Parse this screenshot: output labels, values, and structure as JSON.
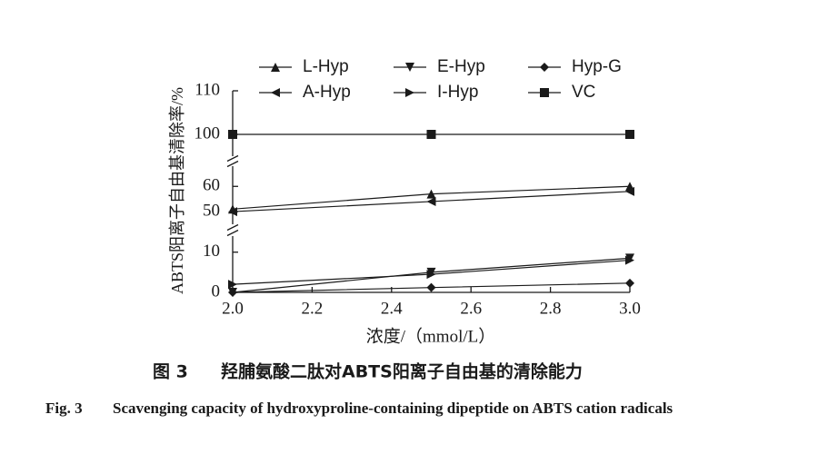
{
  "chart_data": {
    "type": "line",
    "y_label": "ABTS阳离子自由基清除率/%",
    "x_label": "浓度/（mmol/L）",
    "color": "#1a1a1a",
    "x": [
      2.0,
      2.5,
      3.0
    ],
    "xlim": [
      2.0,
      3.0
    ],
    "xticks": [
      {
        "value": 2.0,
        "label": "2.0"
      },
      {
        "value": 2.2,
        "label": "2.2"
      },
      {
        "value": 2.4,
        "label": "2.4"
      },
      {
        "value": 2.6,
        "label": "2.6"
      },
      {
        "value": 2.8,
        "label": "2.8"
      },
      {
        "value": 3.0,
        "label": "3.0"
      }
    ],
    "y_segments": [
      {
        "ylim": [
          0,
          14
        ],
        "yticks": [
          0,
          10
        ]
      },
      {
        "ylim": [
          45,
          68
        ],
        "yticks": [
          50,
          60
        ]
      },
      {
        "ylim": [
          95,
          110
        ],
        "yticks": [
          100,
          110
        ]
      }
    ],
    "series": [
      {
        "name": "L-Hyp",
        "marker": "triangle-up",
        "values": [
          51,
          57,
          60
        ]
      },
      {
        "name": "E-Hyp",
        "marker": "triangle-down",
        "values": [
          0,
          5,
          8.5
        ]
      },
      {
        "name": "Hyp-G",
        "marker": "diamond",
        "values": [
          0,
          1.2,
          2.3
        ]
      },
      {
        "name": "A-Hyp",
        "marker": "triangle-left",
        "values": [
          50,
          54,
          58
        ]
      },
      {
        "name": "I-Hyp",
        "marker": "triangle-right",
        "values": [
          2,
          4.5,
          8
        ]
      },
      {
        "name": "VC",
        "marker": "square",
        "values": [
          100,
          100,
          100
        ]
      }
    ],
    "caption": {
      "cn_label": "图 3",
      "cn_text": "羟脯氨酸二肽对ABTS阳离子自由基的清除能力",
      "en_label": "Fig. 3",
      "en_text": "Scavenging capacity of hydroxyproline-containing dipeptide on ABTS cation radicals"
    }
  }
}
